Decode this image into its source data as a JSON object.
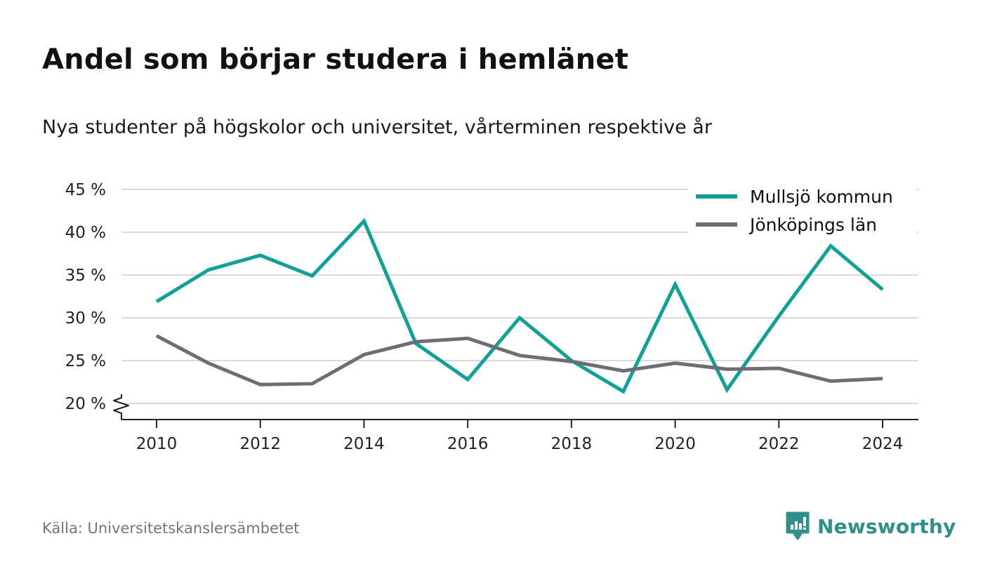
{
  "title": "Andel som börjar studera i hemlänet",
  "subtitle": "Nya studenter på högskolor och universitet, vårterminen respektive år",
  "source": "Källa: Universitetskanslersämbetet",
  "brand": "Newsworthy",
  "colors": {
    "series_a": "#0fa196",
    "series_b": "#6e6d75",
    "grid": "#d9d9d9",
    "axis": "#222222",
    "brand": "#2f8f8a"
  },
  "chart_data": {
    "type": "line",
    "x": [
      2010,
      2011,
      2012,
      2013,
      2014,
      2015,
      2016,
      2017,
      2018,
      2019,
      2020,
      2021,
      2022,
      2023,
      2024
    ],
    "x_ticks": [
      2010,
      2012,
      2014,
      2016,
      2018,
      2020,
      2022,
      2024
    ],
    "x_tick_labels": [
      "2010",
      "2012",
      "2014",
      "2016",
      "2018",
      "2020",
      "2022",
      "2024"
    ],
    "y_ticks": [
      20,
      25,
      30,
      35,
      40,
      45
    ],
    "y_tick_labels": [
      "20 %",
      "25 %",
      "30 %",
      "35 %",
      "40 %",
      "45 %"
    ],
    "ylim": [
      20,
      45
    ],
    "xlim": [
      2010,
      2024
    ],
    "grid": true,
    "y_axis_break": true,
    "legend_position": "top-right",
    "series": [
      {
        "name": "Mullsjö kommun",
        "color": "#0fa196",
        "values": [
          31.9,
          35.6,
          37.3,
          34.9,
          41.3,
          27.0,
          22.8,
          30.0,
          25.0,
          21.4,
          33.9,
          21.6,
          30.2,
          38.4,
          33.3
        ]
      },
      {
        "name": "Jönköpings län",
        "color": "#6e6d75",
        "values": [
          27.9,
          24.7,
          22.2,
          22.3,
          25.7,
          27.2,
          27.6,
          25.6,
          24.9,
          23.8,
          24.7,
          24.0,
          24.1,
          22.6,
          22.9
        ]
      }
    ]
  }
}
